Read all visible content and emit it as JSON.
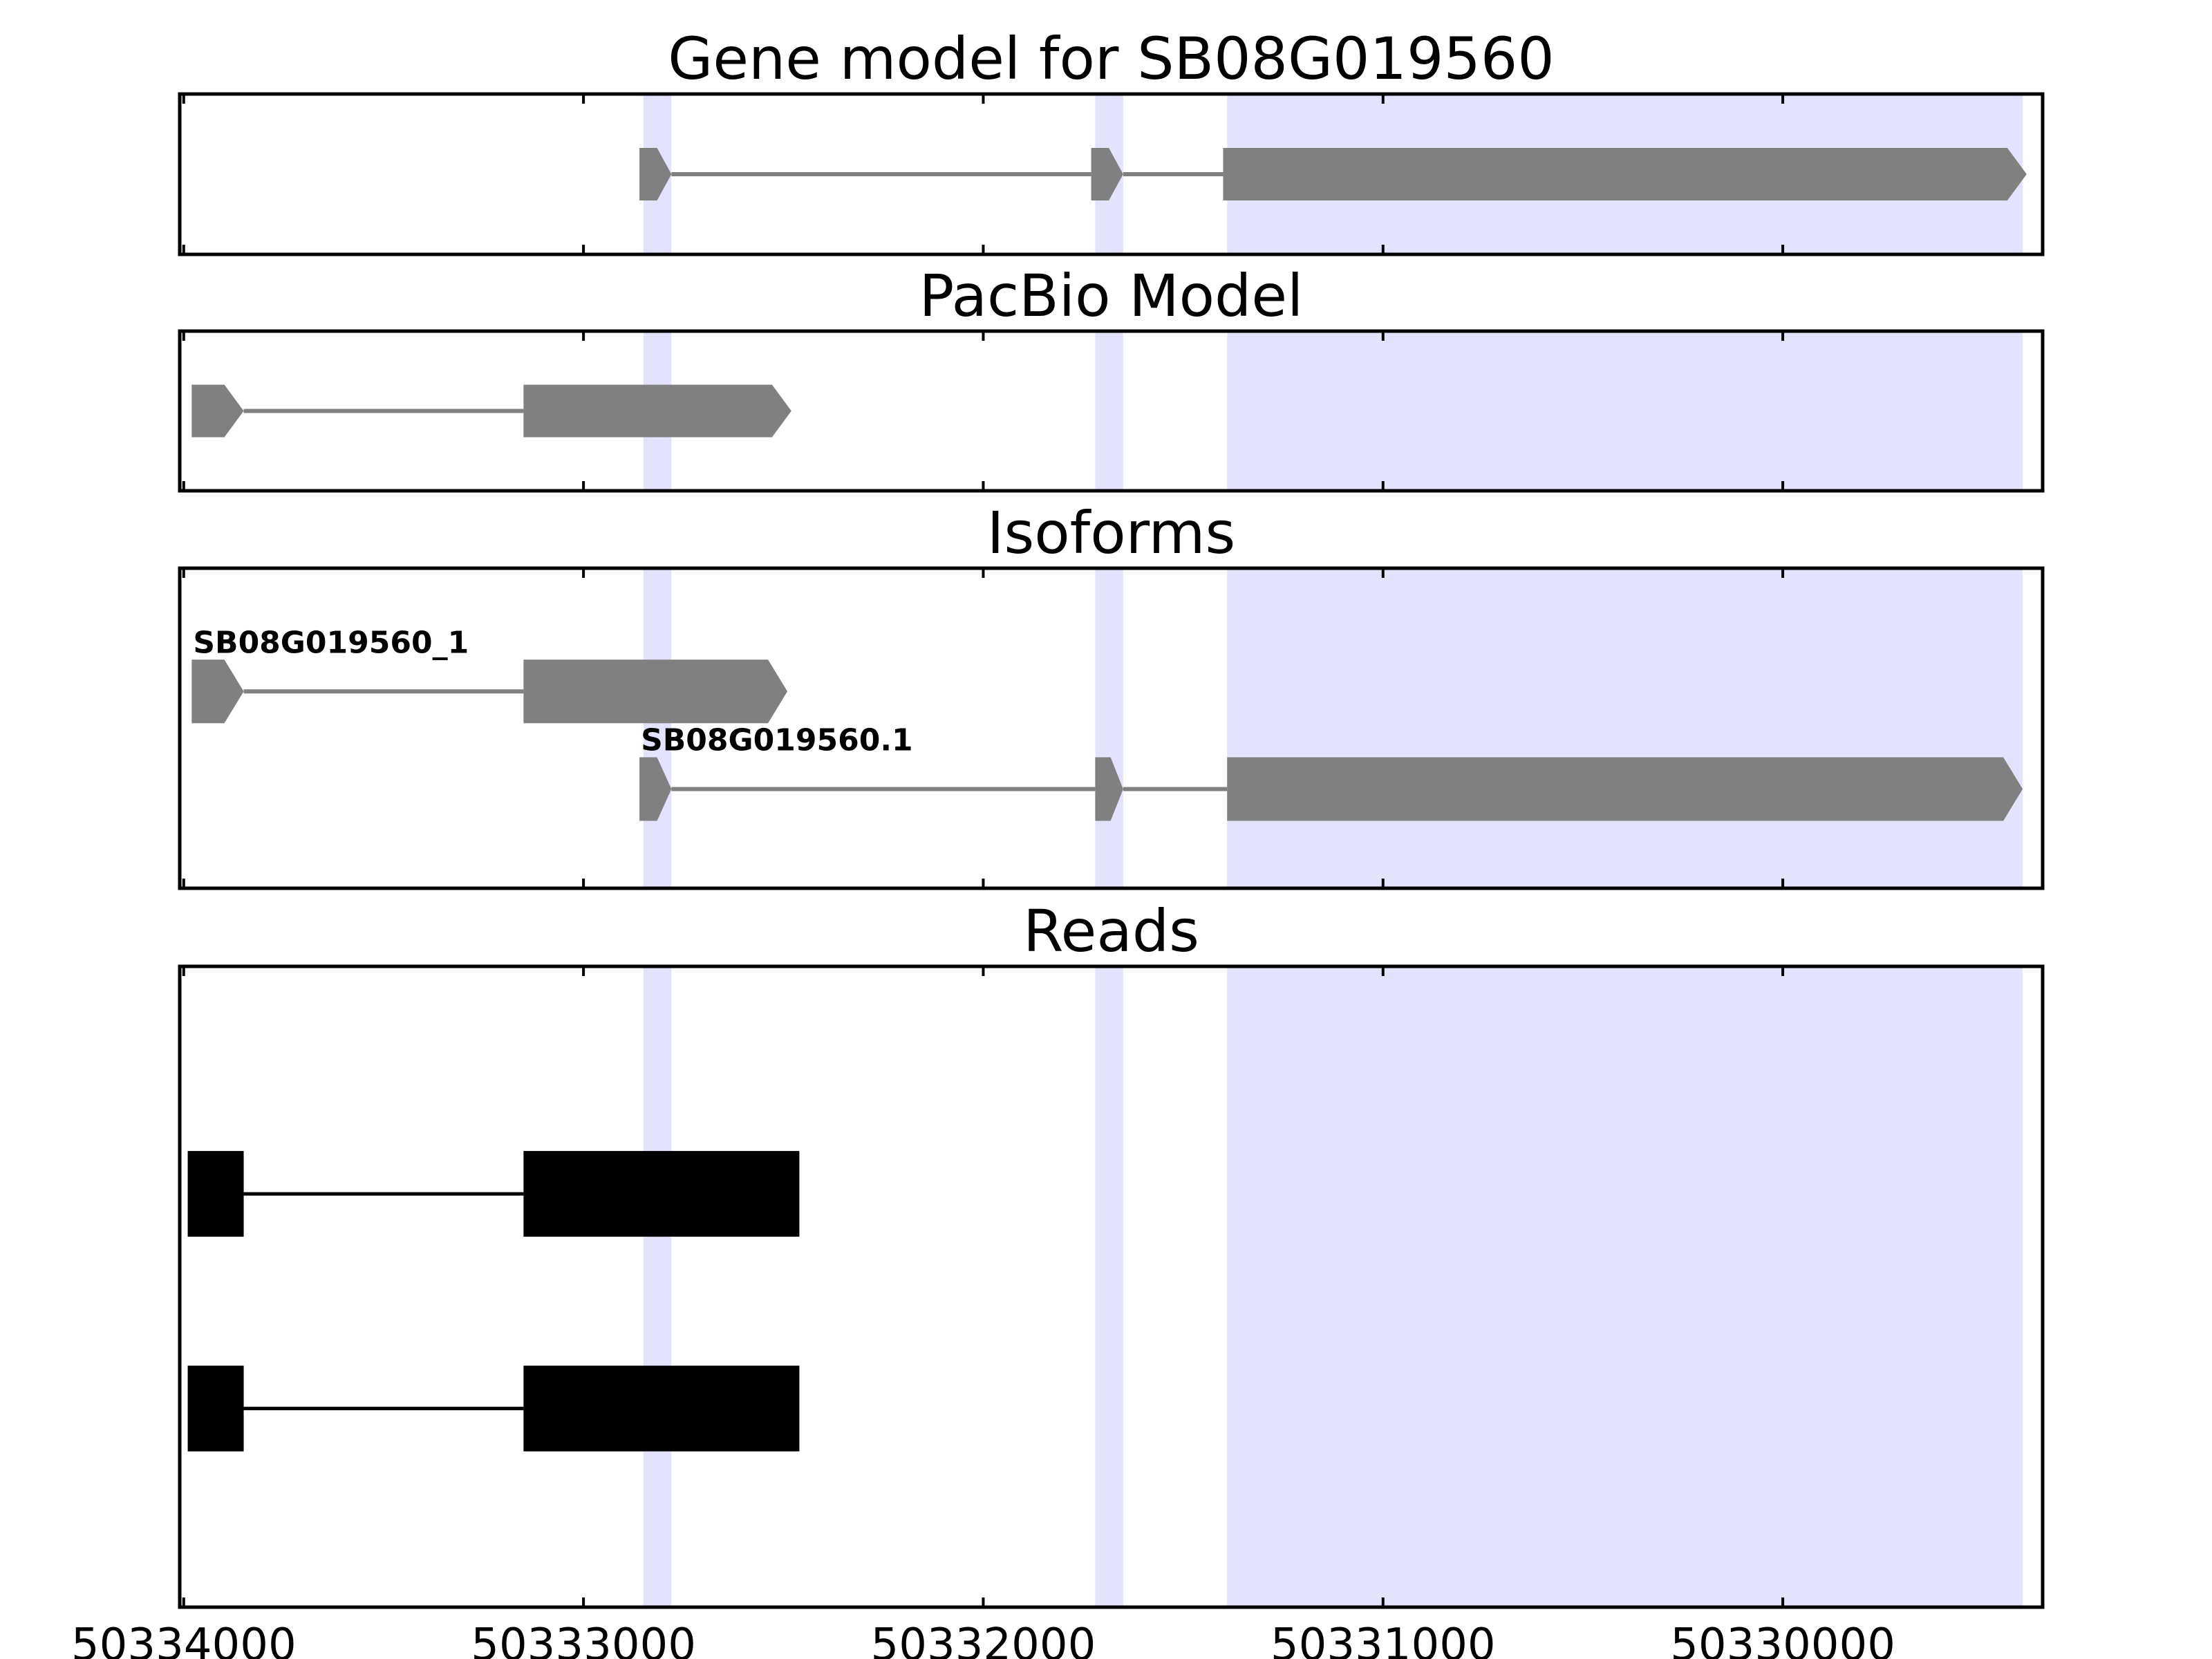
{
  "chart_data": {
    "type": "gene-track",
    "x_domain": [
      50334010,
      50329350
    ],
    "x_ticks": [
      50334000,
      50333000,
      50332000,
      50331000,
      50330000
    ],
    "x_tick_labels": [
      "50334000",
      "50333000",
      "50332000",
      "50331000",
      "50330000"
    ],
    "highlight_color": "#e3e3fd",
    "feature_color": "#808080",
    "read_color": "#000000",
    "highlights": [
      [
        50332850,
        50332780
      ],
      [
        50331720,
        50331650
      ],
      [
        50331390,
        50329400
      ]
    ],
    "panels": [
      {
        "title": "Gene model for SB08G019560",
        "rows": [
          {
            "label": "",
            "exons": [
              [
                50332860,
                50332780
              ],
              [
                50331730,
                50331650
              ],
              [
                50331400,
                50329390
              ]
            ],
            "style": "arrow"
          }
        ]
      },
      {
        "title": "PacBio Model",
        "rows": [
          {
            "label": "",
            "exons": [
              [
                50333980,
                50333850
              ],
              [
                50333150,
                50332480
              ]
            ],
            "style": "arrow"
          }
        ]
      },
      {
        "title": "Isoforms",
        "rows": [
          {
            "label": "SB08G019560_1",
            "exons": [
              [
                50333980,
                50333850
              ],
              [
                50333150,
                50332490
              ]
            ],
            "style": "arrow"
          },
          {
            "label": "SB08G019560.1",
            "exons": [
              [
                50332860,
                50332780
              ],
              [
                50331720,
                50331650
              ],
              [
                50331390,
                50329400
              ]
            ],
            "style": "arrow"
          }
        ]
      },
      {
        "title": "Reads",
        "rows": [
          {
            "label": "",
            "exons": [
              [
                50333990,
                50333850
              ],
              [
                50333150,
                50332460
              ]
            ],
            "style": "block"
          },
          {
            "label": "",
            "exons": [
              [
                50333990,
                50333850
              ],
              [
                50333150,
                50332460
              ]
            ],
            "style": "block"
          }
        ]
      }
    ]
  }
}
